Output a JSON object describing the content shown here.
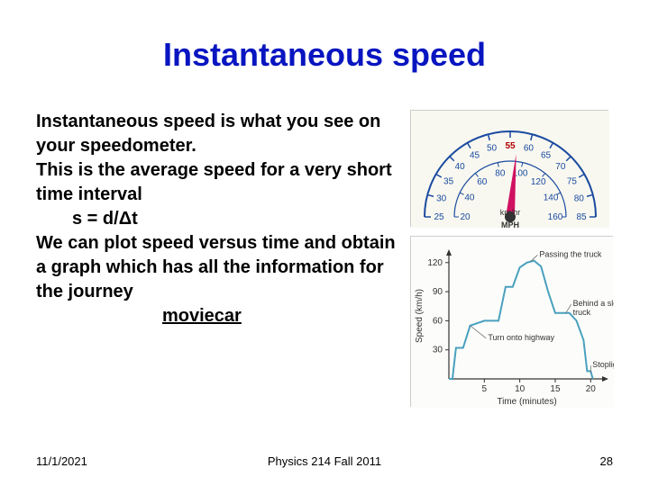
{
  "title": "Instantaneous speed",
  "body": {
    "p1": "Instantaneous speed is what you see on your speedometer.",
    "p2": "This is the average speed for a very short time interval",
    "eq": "s = d/Δt",
    "p3": "We can plot speed versus time and obtain a graph which has all the information for the journey",
    "link": "moviecar"
  },
  "footer": {
    "date": "11/1/2021",
    "course": "Physics 214 Fall 2011",
    "page": "28"
  },
  "speedometer": {
    "top_marker": "55",
    "top_color": "#cc0000",
    "outer_ticks": [
      "25",
      "30",
      "35",
      "40",
      "45",
      "50",
      "60",
      "65",
      "70",
      "75",
      "80",
      "85"
    ],
    "inner_ticks": [
      "40",
      "60",
      "80",
      "100",
      "120",
      "140"
    ],
    "inner_ends": [
      "20",
      "160"
    ],
    "unit_top": "km/hr",
    "unit_bottom": "MPH",
    "needle_color": "#d01060",
    "scale_color": "#1a4aa0",
    "bg": "#f8f8f0"
  },
  "chart": {
    "ylabel": "Speed (km/h)",
    "xlabel": "Time (minutes)",
    "yticks": [
      30,
      60,
      90,
      120
    ],
    "xticks": [
      5,
      10,
      15,
      20
    ],
    "ylim": [
      0,
      130
    ],
    "xlim": [
      0,
      22
    ],
    "line_color": "#4aa0c0",
    "axis_color": "#333333",
    "bg": "#fcfdfa",
    "points": [
      [
        0,
        0
      ],
      [
        0.5,
        0
      ],
      [
        1,
        32
      ],
      [
        2,
        32
      ],
      [
        3,
        55
      ],
      [
        5,
        60
      ],
      [
        7,
        60
      ],
      [
        8,
        95
      ],
      [
        9,
        95
      ],
      [
        10,
        115
      ],
      [
        11,
        120
      ],
      [
        12,
        122
      ],
      [
        13,
        116
      ],
      [
        14,
        90
      ],
      [
        15,
        68
      ],
      [
        16,
        68
      ],
      [
        17,
        68
      ],
      [
        18,
        60
      ],
      [
        19,
        40
      ],
      [
        19.5,
        8
      ],
      [
        20,
        8
      ],
      [
        20.3,
        0
      ]
    ],
    "annotations": {
      "passing": "Passing the truck",
      "behind": "Behind a slow truck",
      "highway": "Turn onto highway",
      "stoplight": "Stoplight"
    }
  }
}
